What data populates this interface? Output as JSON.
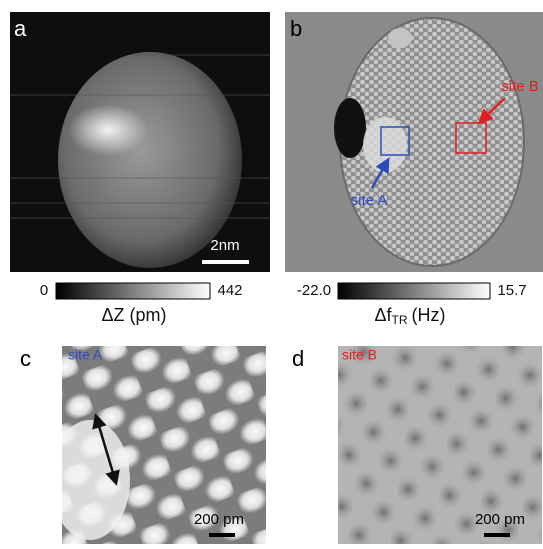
{
  "panels": [
    {
      "label": "a",
      "scale_bar": "2nm",
      "colorbar": {
        "min": "0",
        "max": "442",
        "title": "ΔZ (pm)"
      }
    },
    {
      "label": "b",
      "annotations": [
        "site A",
        "site B"
      ],
      "colorbar": {
        "min": "-22.0",
        "max": "15.7",
        "title": {
          "main": "Δf",
          "sub": "TR",
          "unit": "(Hz)"
        }
      }
    },
    {
      "label": "c",
      "site": "site A",
      "scale_bar": "200 pm"
    },
    {
      "label": "d",
      "site": "site B",
      "scale_bar": "200 pm"
    }
  ]
}
